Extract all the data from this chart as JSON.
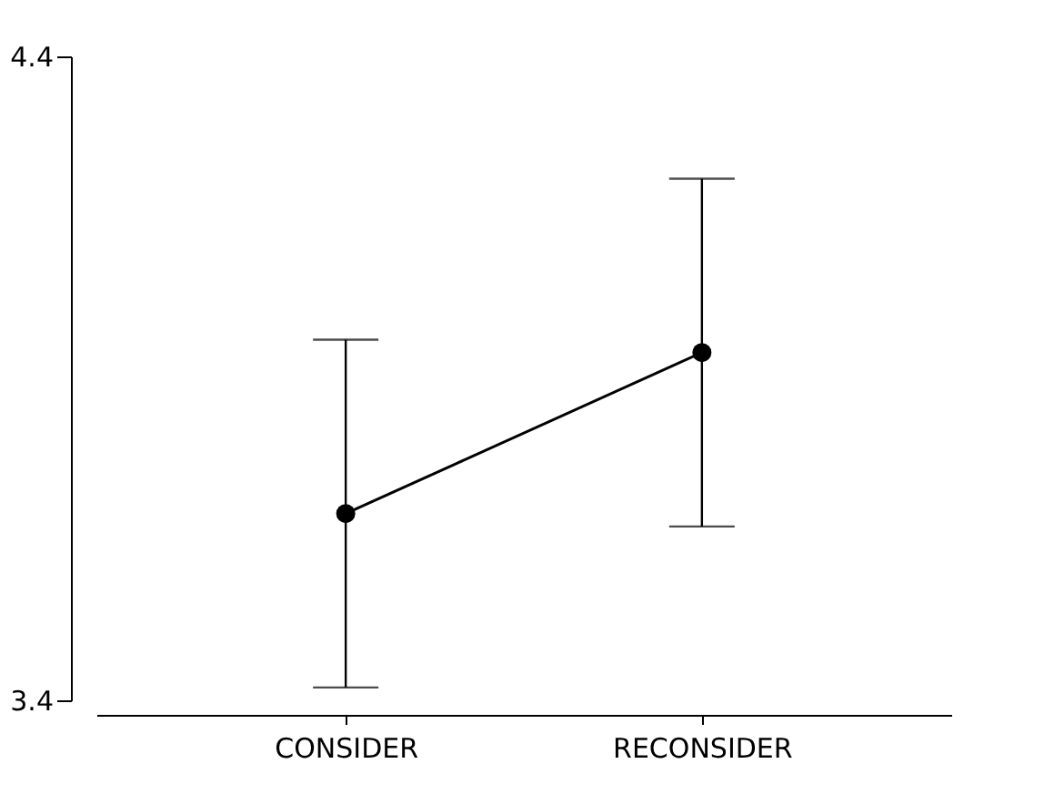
{
  "chart_data": {
    "type": "line",
    "categories": [
      "CONSIDER",
      "RECONSIDER"
    ],
    "values": [
      3.69,
      3.94
    ],
    "errors": [
      0.27,
      0.27
    ],
    "color": "#000000",
    "marker": "circle",
    "ylim": [
      3.4,
      4.4
    ],
    "yticks": [
      3.4,
      4.4
    ]
  }
}
